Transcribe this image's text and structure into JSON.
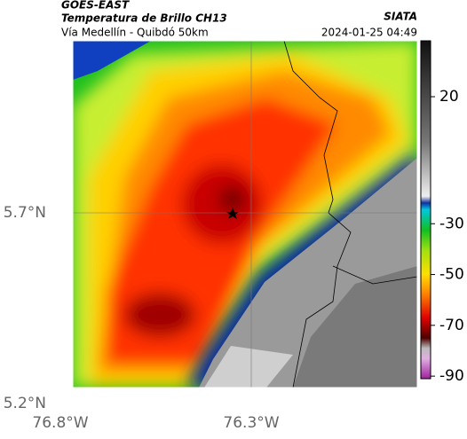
{
  "header": {
    "source": "GOES-EAST",
    "title": "Temperatura de Brillo CH13",
    "route": "Vía Medellín - Quibdó 50km",
    "brand": "SIATA",
    "timestamp": "2024-01-25 04:49"
  },
  "map": {
    "lat_ticks": [
      {
        "value": 5.7,
        "label": "5.7°N"
      },
      {
        "value": 5.2,
        "label": "5.2°N"
      }
    ],
    "lon_ticks": [
      {
        "value": -76.8,
        "label": "76.8°W"
      },
      {
        "value": -76.3,
        "label": "76.3°W"
      }
    ]
  },
  "colorbar": {
    "lim": [
      -91,
      42
    ],
    "ticks": [
      20,
      -30,
      -50,
      -70,
      -90
    ]
  }
}
